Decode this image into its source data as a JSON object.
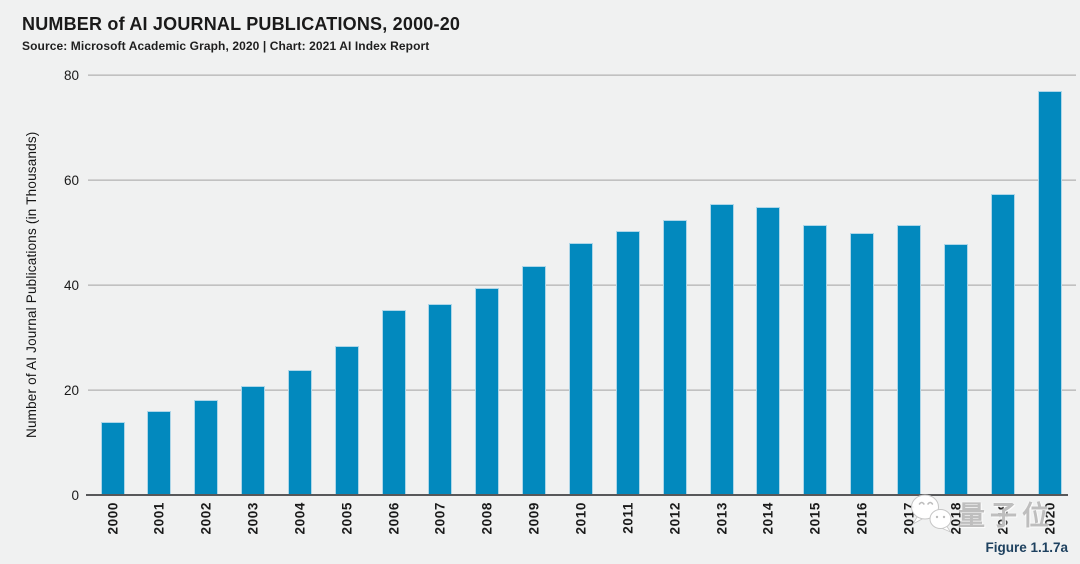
{
  "header": {
    "title": "NUMBER of AI JOURNAL PUBLICATIONS, 2000-20",
    "source": "Source: Microsoft Academic Graph, 2020 | Chart: 2021 AI Index Report"
  },
  "chart_data": {
    "type": "bar",
    "title": "NUMBER of AI JOURNAL PUBLICATIONS, 2000-20",
    "xlabel": "",
    "ylabel": "Number of AI Journal Publications (in Thousands)",
    "ylim": [
      0,
      80
    ],
    "yticks": [
      0,
      20,
      40,
      60,
      80
    ],
    "grid": true,
    "legend": "none",
    "bar_color": "#0289BE",
    "background_color": "#f0f1f1",
    "categories": [
      "2000",
      "2001",
      "2002",
      "2003",
      "2004",
      "2005",
      "2006",
      "2007",
      "2008",
      "2009",
      "2010",
      "2011",
      "2012",
      "2013",
      "2014",
      "2015",
      "2016",
      "2017",
      "2018",
      "2019",
      "2020"
    ],
    "values": [
      14.0,
      16.0,
      18.1,
      20.7,
      23.9,
      28.4,
      35.2,
      36.4,
      39.5,
      43.6,
      48.0,
      50.3,
      52.4,
      55.4,
      54.9,
      51.4,
      49.9,
      51.4,
      47.9,
      57.3,
      77.0
    ]
  },
  "watermark": {
    "icon": "wechat-icon",
    "text": "量子位"
  },
  "footer": {
    "figure_label": "Figure 1.1.7a"
  }
}
